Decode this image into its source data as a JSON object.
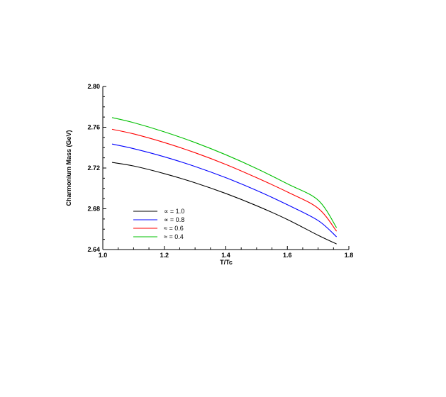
{
  "chart_data": {
    "type": "line",
    "xlabel": "T/Tc",
    "ylabel": "Charmonium Mass (GeV)",
    "xlim": [
      1.0,
      1.8
    ],
    "ylim": [
      2.64,
      2.8
    ],
    "xticks": [
      1.0,
      1.2,
      1.4,
      1.6,
      1.8
    ],
    "xtick_labels": [
      "1.0",
      "1.2",
      "1.4",
      "1.6",
      "1.8"
    ],
    "yticks": [
      2.64,
      2.68,
      2.72,
      2.76,
      2.8
    ],
    "ytick_labels": [
      "2.64",
      "2.68",
      "2.72",
      "2.76",
      "2.80"
    ],
    "grid": false,
    "legend_position": "bottom-left",
    "x": [
      1.03,
      1.1,
      1.2,
      1.3,
      1.4,
      1.5,
      1.6,
      1.7,
      1.76
    ],
    "series": [
      {
        "name": "∝ = 1.0",
        "color": "#000000",
        "values": [
          2.7255,
          2.722,
          2.7145,
          2.7055,
          2.695,
          2.683,
          2.6695,
          2.654,
          2.6455
        ]
      },
      {
        "name": "∝ = 0.8",
        "color": "#0000ff",
        "values": [
          2.7435,
          2.739,
          2.731,
          2.7215,
          2.7105,
          2.698,
          2.684,
          2.6685,
          2.6525
        ]
      },
      {
        "name": "≈ = 0.6",
        "color": "#ff0000",
        "values": [
          2.758,
          2.7535,
          2.745,
          2.735,
          2.7235,
          2.7105,
          2.6965,
          2.6805,
          2.658
        ]
      },
      {
        "name": "≈ = 0.4",
        "color": "#00c000",
        "values": [
          2.7695,
          2.7645,
          2.7555,
          2.745,
          2.733,
          2.7195,
          2.7045,
          2.6885,
          2.6615
        ]
      }
    ]
  }
}
